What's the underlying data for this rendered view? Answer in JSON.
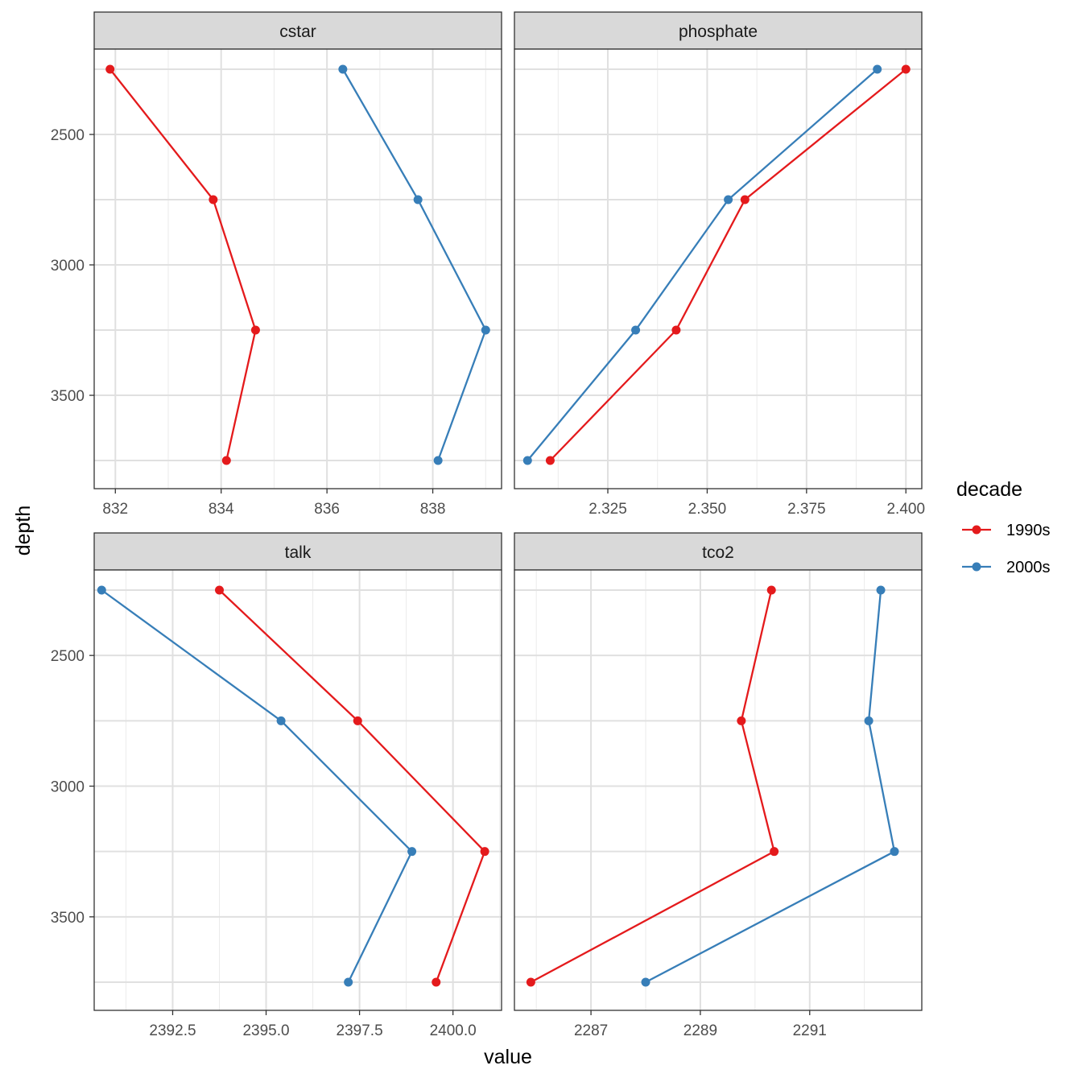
{
  "xlabel": "value",
  "ylabel": "depth",
  "legend_title": "decade",
  "colors": {
    "1990s": "#e41a1c",
    "2000s": "#377eb8"
  },
  "chart_data": {
    "type": "line",
    "y_shared": {
      "ylim": [
        2250,
        3790
      ],
      "reversed": true,
      "ticks": [
        2500,
        3000,
        3500
      ],
      "tick_labels": [
        "2500",
        "3000",
        "3500"
      ]
    },
    "grid": true,
    "legend_position": "right",
    "panels": [
      {
        "title": "cstar",
        "xlim": [
          831.6,
          839.3
        ],
        "xticks": [
          832,
          834,
          836,
          838
        ],
        "xtick_labels": [
          "832",
          "834",
          "836",
          "838"
        ],
        "series": [
          {
            "name": "1990s",
            "points": [
              [
                831.9,
                2250
              ],
              [
                833.85,
                2750
              ],
              [
                834.65,
                3250
              ],
              [
                834.1,
                3750
              ]
            ]
          },
          {
            "name": "2000s",
            "points": [
              [
                836.3,
                2250
              ],
              [
                837.72,
                2750
              ],
              [
                839.0,
                3250
              ],
              [
                838.1,
                3750
              ]
            ]
          }
        ]
      },
      {
        "title": "phosphate",
        "xlim": [
          2.3015,
          2.404
        ],
        "xticks": [
          2.325,
          2.35,
          2.375,
          2.4
        ],
        "xtick_labels": [
          "2.325",
          "2.350",
          "2.375",
          "2.400"
        ],
        "series": [
          {
            "name": "1990s",
            "points": [
              [
                2.4,
                2250
              ],
              [
                2.3595,
                2750
              ],
              [
                2.3422,
                3250
              ],
              [
                2.3105,
                3750
              ]
            ]
          },
          {
            "name": "2000s",
            "points": [
              [
                2.3928,
                2250
              ],
              [
                2.3553,
                2750
              ],
              [
                2.332,
                3250
              ],
              [
                2.3048,
                3750
              ]
            ]
          }
        ]
      },
      {
        "title": "talk",
        "xlim": [
          2390.4,
          2401.3
        ],
        "xticks": [
          2392.5,
          2395.0,
          2397.5,
          2400.0
        ],
        "xtick_labels": [
          "2392.5",
          "2395.0",
          "2397.5",
          "2400.0"
        ],
        "series": [
          {
            "name": "1990s",
            "points": [
              [
                2393.75,
                2250
              ],
              [
                2397.45,
                2750
              ],
              [
                2400.85,
                3250
              ],
              [
                2399.55,
                3750
              ]
            ]
          },
          {
            "name": "2000s",
            "points": [
              [
                2390.6,
                2250
              ],
              [
                2395.4,
                2750
              ],
              [
                2398.9,
                3250
              ],
              [
                2397.2,
                3750
              ]
            ]
          }
        ]
      },
      {
        "title": "tco2",
        "xlim": [
          2285.6,
          2293.05
        ],
        "xticks": [
          2287,
          2289,
          2291
        ],
        "xtick_labels": [
          "2287",
          "2289",
          "2291"
        ],
        "series": [
          {
            "name": "1990s",
            "points": [
              [
                2290.3,
                2250
              ],
              [
                2289.75,
                2750
              ],
              [
                2290.35,
                3250
              ],
              [
                2285.9,
                3750
              ]
            ]
          },
          {
            "name": "2000s",
            "points": [
              [
                2292.3,
                2250
              ],
              [
                2292.08,
                2750
              ],
              [
                2292.55,
                3250
              ],
              [
                2288.0,
                3750
              ]
            ]
          }
        ]
      }
    ]
  }
}
